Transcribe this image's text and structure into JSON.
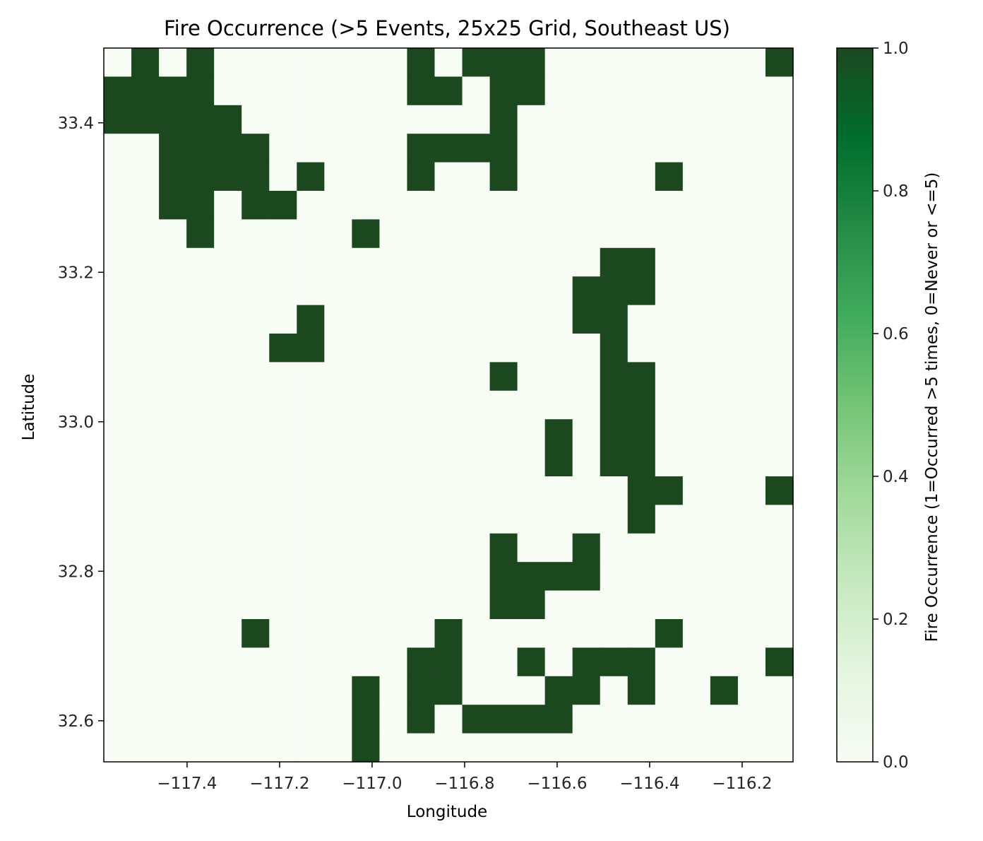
{
  "chart_data": {
    "type": "heatmap",
    "title": "Fire Occurrence (>5 Events, 25x25 Grid, Southeast US)",
    "xlabel": "Longitude",
    "ylabel": "Latitude",
    "xlim": [
      -117.58,
      -116.09
    ],
    "ylim": [
      32.545,
      33.5
    ],
    "x_ticks": [
      -117.4,
      -117.2,
      -117.0,
      -116.8,
      -116.6,
      -116.4,
      -116.2
    ],
    "x_tick_labels": [
      "−117.4",
      "−117.2",
      "−117.0",
      "−116.8",
      "−116.6",
      "−116.4",
      "−116.2"
    ],
    "y_ticks": [
      32.6,
      32.8,
      33.0,
      33.2,
      33.4
    ],
    "y_tick_labels": [
      "32.6",
      "32.8",
      "33.0",
      "33.2",
      "33.4"
    ],
    "colorbar": {
      "label": "Fire Occurrence (1=Occurred >5 times, 0=Never or <=5)",
      "min": 0.0,
      "max": 1.0,
      "ticks": [
        0.0,
        0.2,
        0.4,
        0.6,
        0.8,
        1.0
      ],
      "tick_labels": [
        "0.0",
        "0.2",
        "0.4",
        "0.6",
        "0.8",
        "1.0"
      ],
      "colormap": "Greens",
      "color_low": "#f7fcf5",
      "color_high": "#1c4820"
    },
    "grid_rows": 25,
    "grid_cols": 25,
    "row_order": "top-to-bottom (highest latitude first)",
    "values": [
      [
        0,
        1,
        0,
        1,
        0,
        0,
        0,
        0,
        0,
        0,
        0,
        1,
        0,
        1,
        1,
        1,
        0,
        0,
        0,
        0,
        0,
        0,
        0,
        0,
        1
      ],
      [
        1,
        1,
        1,
        1,
        0,
        0,
        0,
        0,
        0,
        0,
        0,
        1,
        1,
        0,
        1,
        1,
        0,
        0,
        0,
        0,
        0,
        0,
        0,
        0,
        0
      ],
      [
        1,
        1,
        1,
        1,
        1,
        0,
        0,
        0,
        0,
        0,
        0,
        0,
        0,
        0,
        1,
        0,
        0,
        0,
        0,
        0,
        0,
        0,
        0,
        0,
        0
      ],
      [
        0,
        0,
        1,
        1,
        1,
        1,
        0,
        0,
        0,
        0,
        0,
        1,
        1,
        1,
        1,
        0,
        0,
        0,
        0,
        0,
        0,
        0,
        0,
        0,
        0
      ],
      [
        0,
        0,
        1,
        1,
        1,
        1,
        0,
        1,
        0,
        0,
        0,
        1,
        0,
        0,
        1,
        0,
        0,
        0,
        0,
        0,
        1,
        0,
        0,
        0,
        0
      ],
      [
        0,
        0,
        1,
        1,
        0,
        1,
        1,
        0,
        0,
        0,
        0,
        0,
        0,
        0,
        0,
        0,
        0,
        0,
        0,
        0,
        0,
        0,
        0,
        0,
        0
      ],
      [
        0,
        0,
        0,
        1,
        0,
        0,
        0,
        0,
        0,
        1,
        0,
        0,
        0,
        0,
        0,
        0,
        0,
        0,
        0,
        0,
        0,
        0,
        0,
        0,
        0
      ],
      [
        0,
        0,
        0,
        0,
        0,
        0,
        0,
        0,
        0,
        0,
        0,
        0,
        0,
        0,
        0,
        0,
        0,
        0,
        1,
        1,
        0,
        0,
        0,
        0,
        0
      ],
      [
        0,
        0,
        0,
        0,
        0,
        0,
        0,
        0,
        0,
        0,
        0,
        0,
        0,
        0,
        0,
        0,
        0,
        1,
        1,
        1,
        0,
        0,
        0,
        0,
        0
      ],
      [
        0,
        0,
        0,
        0,
        0,
        0,
        0,
        1,
        0,
        0,
        0,
        0,
        0,
        0,
        0,
        0,
        0,
        1,
        1,
        0,
        0,
        0,
        0,
        0,
        0
      ],
      [
        0,
        0,
        0,
        0,
        0,
        0,
        1,
        1,
        0,
        0,
        0,
        0,
        0,
        0,
        0,
        0,
        0,
        0,
        1,
        0,
        0,
        0,
        0,
        0,
        0
      ],
      [
        0,
        0,
        0,
        0,
        0,
        0,
        0,
        0,
        0,
        0,
        0,
        0,
        0,
        0,
        1,
        0,
        0,
        0,
        1,
        1,
        0,
        0,
        0,
        0,
        0
      ],
      [
        0,
        0,
        0,
        0,
        0,
        0,
        0,
        0,
        0,
        0,
        0,
        0,
        0,
        0,
        0,
        0,
        0,
        0,
        1,
        1,
        0,
        0,
        0,
        0,
        0
      ],
      [
        0,
        0,
        0,
        0,
        0,
        0,
        0,
        0,
        0,
        0,
        0,
        0,
        0,
        0,
        0,
        0,
        1,
        0,
        1,
        1,
        0,
        0,
        0,
        0,
        0
      ],
      [
        0,
        0,
        0,
        0,
        0,
        0,
        0,
        0,
        0,
        0,
        0,
        0,
        0,
        0,
        0,
        0,
        1,
        0,
        1,
        1,
        0,
        0,
        0,
        0,
        0
      ],
      [
        0,
        0,
        0,
        0,
        0,
        0,
        0,
        0,
        0,
        0,
        0,
        0,
        0,
        0,
        0,
        0,
        0,
        0,
        0,
        1,
        1,
        0,
        0,
        0,
        1
      ],
      [
        0,
        0,
        0,
        0,
        0,
        0,
        0,
        0,
        0,
        0,
        0,
        0,
        0,
        0,
        0,
        0,
        0,
        0,
        0,
        1,
        0,
        0,
        0,
        0,
        0
      ],
      [
        0,
        0,
        0,
        0,
        0,
        0,
        0,
        0,
        0,
        0,
        0,
        0,
        0,
        0,
        1,
        0,
        0,
        1,
        0,
        0,
        0,
        0,
        0,
        0,
        0
      ],
      [
        0,
        0,
        0,
        0,
        0,
        0,
        0,
        0,
        0,
        0,
        0,
        0,
        0,
        0,
        1,
        1,
        1,
        1,
        0,
        0,
        0,
        0,
        0,
        0,
        0
      ],
      [
        0,
        0,
        0,
        0,
        0,
        0,
        0,
        0,
        0,
        0,
        0,
        0,
        0,
        0,
        1,
        1,
        0,
        0,
        0,
        0,
        0,
        0,
        0,
        0,
        0
      ],
      [
        0,
        0,
        0,
        0,
        0,
        1,
        0,
        0,
        0,
        0,
        0,
        0,
        1,
        0,
        0,
        0,
        0,
        0,
        0,
        0,
        1,
        0,
        0,
        0,
        0
      ],
      [
        0,
        0,
        0,
        0,
        0,
        0,
        0,
        0,
        0,
        0,
        0,
        1,
        1,
        0,
        0,
        1,
        0,
        1,
        1,
        1,
        0,
        0,
        0,
        0,
        1
      ],
      [
        0,
        0,
        0,
        0,
        0,
        0,
        0,
        0,
        0,
        1,
        0,
        1,
        1,
        0,
        0,
        0,
        1,
        1,
        0,
        1,
        0,
        0,
        1,
        0,
        0
      ],
      [
        0,
        0,
        0,
        0,
        0,
        0,
        0,
        0,
        0,
        1,
        0,
        1,
        0,
        1,
        1,
        1,
        1,
        0,
        0,
        0,
        0,
        0,
        0,
        0,
        0
      ],
      [
        0,
        0,
        0,
        0,
        0,
        0,
        0,
        0,
        0,
        1,
        0,
        0,
        0,
        0,
        0,
        0,
        0,
        0,
        0,
        0,
        0,
        0,
        0,
        0,
        0
      ]
    ]
  }
}
